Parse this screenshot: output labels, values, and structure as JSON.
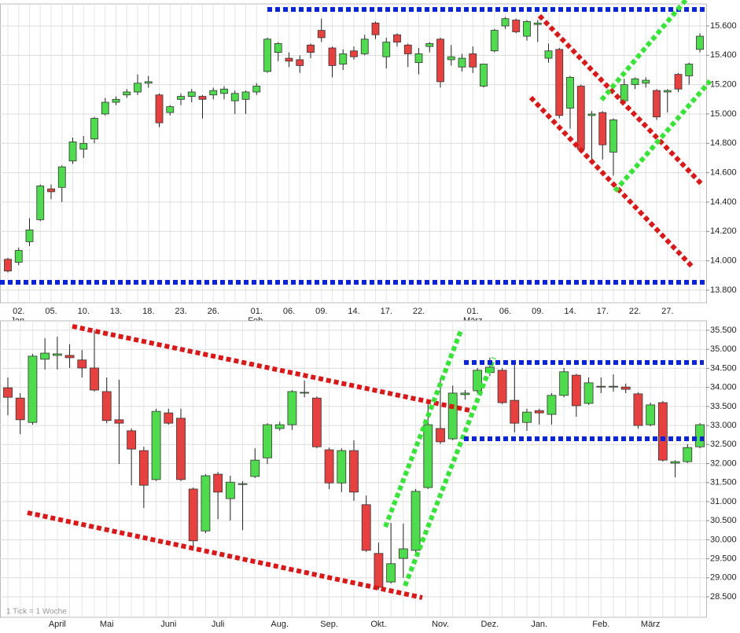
{
  "chart_data": [
    {
      "type": "candlestick",
      "categories": [
        null,
        "02.",
        null,
        null,
        "05.",
        null,
        null,
        "10.",
        null,
        null,
        "13.",
        null,
        null,
        "18.",
        null,
        null,
        "23.",
        null,
        null,
        "26.",
        null,
        null,
        null,
        "01.",
        null,
        null,
        "06.",
        null,
        null,
        "09.",
        null,
        null,
        "14.",
        null,
        null,
        "17.",
        null,
        null,
        "22.",
        null,
        null,
        null,
        null,
        "01.",
        null,
        null,
        "06.",
        null,
        null,
        "09.",
        null,
        null,
        "14.",
        null,
        null,
        "17.",
        null,
        null,
        "22.",
        null,
        null,
        "27.",
        null,
        null,
        null
      ],
      "months": [
        null,
        "Jan.",
        null,
        null,
        null,
        null,
        null,
        null,
        null,
        null,
        null,
        null,
        null,
        null,
        null,
        null,
        null,
        null,
        null,
        null,
        null,
        null,
        null,
        "Feb.",
        null,
        null,
        null,
        null,
        null,
        null,
        null,
        null,
        null,
        null,
        null,
        null,
        null,
        null,
        null,
        null,
        null,
        null,
        null,
        "März",
        null,
        null,
        null,
        null,
        null,
        null,
        null,
        null,
        null,
        null,
        null,
        null,
        null,
        null,
        null,
        null,
        null,
        null,
        null,
        null,
        null
      ],
      "open": [
        14010,
        13990,
        14130,
        14280,
        14490,
        14500,
        14680,
        14760,
        14830,
        15000,
        15080,
        15130,
        15150,
        15210,
        15130,
        15010,
        15100,
        15120,
        15120,
        15130,
        15140,
        15090,
        15100,
        15150,
        15290,
        15420,
        15380,
        15370,
        15470,
        15570,
        15450,
        15340,
        15430,
        15410,
        15620,
        15390,
        15540,
        15470,
        15350,
        15460,
        15510,
        15370,
        15320,
        15410,
        15190,
        15430,
        15600,
        15640,
        15530,
        15610,
        15380,
        15440,
        15040,
        15190,
        14990,
        15010,
        14740,
        15090,
        15200,
        15210,
        15160,
        15150,
        15270,
        15260,
        15440
      ],
      "high": [
        14020,
        14090,
        14290,
        14520,
        14520,
        14650,
        14840,
        14850,
        14980,
        15110,
        15120,
        15170,
        15270,
        15260,
        15140,
        15060,
        15140,
        15170,
        15130,
        15180,
        15190,
        15160,
        15160,
        15210,
        15520,
        15490,
        15420,
        15400,
        15480,
        15650,
        15460,
        15440,
        15460,
        15540,
        15630,
        15520,
        15550,
        15480,
        15450,
        15490,
        15520,
        15470,
        15410,
        15460,
        15340,
        15580,
        15660,
        15650,
        15640,
        15640,
        15480,
        15450,
        15260,
        15200,
        15020,
        15020,
        14970,
        15240,
        15250,
        15250,
        15170,
        15170,
        15280,
        15350,
        15550
      ],
      "low": [
        13920,
        13970,
        14100,
        14270,
        14420,
        14400,
        14660,
        14700,
        14800,
        14990,
        15060,
        15110,
        15130,
        15180,
        14910,
        14990,
        15060,
        15080,
        14970,
        15100,
        15100,
        15000,
        15000,
        15130,
        15280,
        15360,
        15320,
        15280,
        15380,
        15490,
        15250,
        15300,
        15370,
        15400,
        15510,
        15310,
        15460,
        15320,
        15270,
        15420,
        15180,
        15330,
        15290,
        15280,
        15180,
        15420,
        15580,
        15550,
        15500,
        15490,
        15350,
        14970,
        14900,
        14740,
        14660,
        14690,
        14580,
        15070,
        15170,
        15180,
        14960,
        15010,
        15150,
        15200,
        15420
      ],
      "close": [
        13930,
        14070,
        14210,
        14510,
        14470,
        14640,
        14810,
        14800,
        14970,
        15080,
        15100,
        15150,
        15210,
        15220,
        14940,
        15050,
        15120,
        15150,
        15100,
        15160,
        15170,
        15140,
        15150,
        15190,
        15510,
        15480,
        15360,
        15330,
        15420,
        15520,
        15330,
        15410,
        15390,
        15510,
        15540,
        15490,
        15490,
        15410,
        15410,
        15480,
        15220,
        15390,
        15380,
        15320,
        15340,
        15570,
        15650,
        15560,
        15630,
        15620,
        15430,
        14990,
        15250,
        14760,
        15000,
        14790,
        14960,
        15200,
        15240,
        15230,
        14980,
        15160,
        15170,
        15340,
        15530
      ],
      "up_color": "#4cdc4c",
      "down_color": "#e8403f",
      "ylim": [
        13714,
        15750
      ],
      "yticks": [
        {
          "value": 13800,
          "label": "13.800"
        },
        {
          "value": 14000,
          "label": "14.000"
        },
        {
          "value": 14200,
          "label": "14.200"
        },
        {
          "value": 14400,
          "label": "14.400"
        },
        {
          "value": 14600,
          "label": "14.600"
        },
        {
          "value": 14800,
          "label": "14.800"
        },
        {
          "value": 15000,
          "label": "15.000"
        },
        {
          "value": 15200,
          "label": "15.200"
        },
        {
          "value": 15400,
          "label": "15.400"
        },
        {
          "value": 15600,
          "label": "15.600"
        }
      ],
      "grid": true
    },
    {
      "type": "candlestick",
      "categories": [
        null,
        null,
        null,
        null,
        "April",
        null,
        null,
        null,
        "Mai",
        null,
        null,
        null,
        null,
        "Juni",
        null,
        null,
        null,
        "Juli",
        null,
        null,
        null,
        null,
        "Aug.",
        null,
        null,
        null,
        "Sep.",
        null,
        null,
        null,
        "Okt.",
        null,
        null,
        null,
        null,
        "Nov.",
        null,
        null,
        null,
        "Dez.",
        null,
        null,
        null,
        "Jan.",
        null,
        null,
        null,
        null,
        "Feb.",
        null,
        null,
        null,
        "März",
        null,
        null,
        null,
        null
      ],
      "open": [
        33990,
        33720,
        33080,
        34740,
        34840,
        34840,
        34720,
        34510,
        33890,
        33150,
        32860,
        32340,
        31580,
        33330,
        33190,
        31330,
        30230,
        31720,
        31080,
        31450,
        31660,
        32150,
        32920,
        33020,
        33850,
        33720,
        32360,
        31490,
        32340,
        30920,
        29640,
        28890,
        29510,
        29720,
        31370,
        32920,
        32650,
        33810,
        33910,
        34390,
        34450,
        33660,
        33080,
        33390,
        33290,
        33790,
        34320,
        33580,
        34010,
        34010,
        34010,
        33830,
        33020,
        33600,
        32010,
        32050,
        32440
      ],
      "high": [
        34260,
        33850,
        34880,
        35290,
        35330,
        35130,
        34980,
        35500,
        34260,
        34200,
        32920,
        32440,
        33440,
        33440,
        33440,
        31370,
        31720,
        31780,
        31680,
        31540,
        32400,
        33060,
        33100,
        33930,
        34180,
        33760,
        32420,
        32400,
        32610,
        31160,
        29920,
        30440,
        30420,
        31330,
        33640,
        34260,
        34050,
        33930,
        34510,
        34780,
        34510,
        34630,
        33440,
        33440,
        33850,
        34510,
        34360,
        34260,
        34260,
        34340,
        34100,
        33870,
        33600,
        33640,
        32090,
        32510,
        33060
      ],
      "low": [
        33270,
        32770,
        33020,
        34470,
        34470,
        34510,
        34260,
        33890,
        33060,
        31990,
        31430,
        30830,
        31540,
        33020,
        31540,
        29720,
        30170,
        30540,
        30500,
        30250,
        31620,
        31990,
        32860,
        32880,
        33740,
        32400,
        31330,
        31250,
        31020,
        29680,
        28690,
        28850,
        29000,
        29620,
        31330,
        32510,
        32610,
        33680,
        33850,
        34300,
        33560,
        32820,
        32860,
        33020,
        33020,
        33740,
        33230,
        33540,
        33850,
        33890,
        33850,
        32920,
        32980,
        32050,
        31640,
        32010,
        32400
      ],
      "close": [
        33740,
        33150,
        34820,
        34900,
        34880,
        34780,
        34510,
        33930,
        33130,
        33060,
        32380,
        31430,
        33370,
        33060,
        31580,
        29970,
        31680,
        31250,
        31510,
        31470,
        32090,
        33020,
        33020,
        33890,
        33870,
        32440,
        31490,
        32340,
        31250,
        29720,
        28750,
        29370,
        29760,
        31270,
        33020,
        32570,
        33850,
        33850,
        34450,
        34530,
        33600,
        33060,
        33350,
        33330,
        33790,
        34410,
        33520,
        34120,
        34030,
        34030,
        33950,
        33000,
        33540,
        32090,
        32050,
        32420,
        33020
      ],
      "up_color": "#4cdc4c",
      "down_color": "#e8403f",
      "ylim": [
        27963,
        35748
      ],
      "yticks": [
        {
          "value": 28500,
          "label": "28.500"
        },
        {
          "value": 29000,
          "label": "29.000"
        },
        {
          "value": 29500,
          "label": "29.500"
        },
        {
          "value": 30000,
          "label": "30.000"
        },
        {
          "value": 30500,
          "label": "30.500"
        },
        {
          "value": 31000,
          "label": "31.000"
        },
        {
          "value": 31500,
          "label": "31.500"
        },
        {
          "value": 32000,
          "label": "32.000"
        },
        {
          "value": 32500,
          "label": "32.500"
        },
        {
          "value": 33000,
          "label": "33.000"
        },
        {
          "value": 33500,
          "label": "33.500"
        },
        {
          "value": 34000,
          "label": "34.000"
        },
        {
          "value": 34500,
          "label": "34.500"
        },
        {
          "value": 35000,
          "label": "35.000"
        },
        {
          "value": 35500,
          "label": "35.500"
        }
      ],
      "grid": true,
      "annotation": "1 Tick = 1 Woche"
    }
  ]
}
